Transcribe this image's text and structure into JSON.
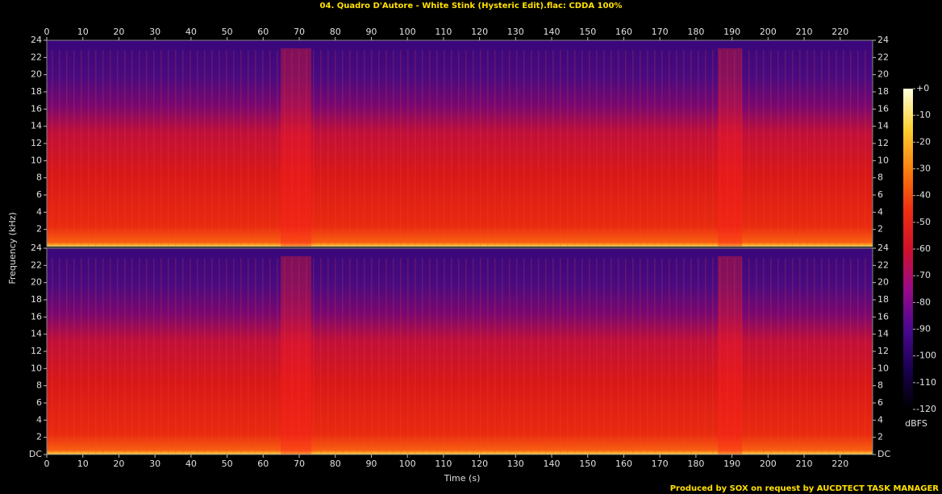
{
  "chart_data": {
    "type": "spectrogram",
    "title": "04. Quadro D'Autore - White Stink (Hysteric Edit).flac: CDDA 100%",
    "x_label": "Time (s)",
    "y_label": "Frequency (kHz)",
    "footer": "Produced by SOX on request by AUCDTECT TASK MANAGER",
    "xlim": [
      0,
      229
    ],
    "xticks": [
      0,
      10,
      20,
      30,
      40,
      50,
      60,
      70,
      80,
      90,
      100,
      110,
      120,
      130,
      140,
      150,
      160,
      170,
      180,
      190,
      200,
      210,
      220
    ],
    "channels": [
      {
        "ylim": [
          0,
          24
        ],
        "yticks": [
          2,
          4,
          6,
          8,
          10,
          12,
          14,
          16,
          18,
          20,
          22,
          24
        ]
      },
      {
        "ylim": [
          0,
          24
        ],
        "yticks": [
          {
            "value": 0,
            "label": "DC"
          },
          2,
          4,
          6,
          8,
          10,
          12,
          14,
          16,
          18,
          20,
          22,
          24
        ]
      }
    ],
    "colorbar": {
      "label": "dBFS",
      "lim": [
        -120,
        0
      ],
      "ticks": [
        {
          "value": 0,
          "label": "+0"
        },
        -10,
        -20,
        -30,
        -40,
        -50,
        -60,
        -70,
        -80,
        -90,
        -100,
        -110,
        -120
      ],
      "colors": [
        "#000000",
        "#1a0050",
        "#4a0890",
        "#9a0a8a",
        "#d0102a",
        "#f03010",
        "#fa8010",
        "#fdd030",
        "#ffffe0"
      ]
    }
  }
}
